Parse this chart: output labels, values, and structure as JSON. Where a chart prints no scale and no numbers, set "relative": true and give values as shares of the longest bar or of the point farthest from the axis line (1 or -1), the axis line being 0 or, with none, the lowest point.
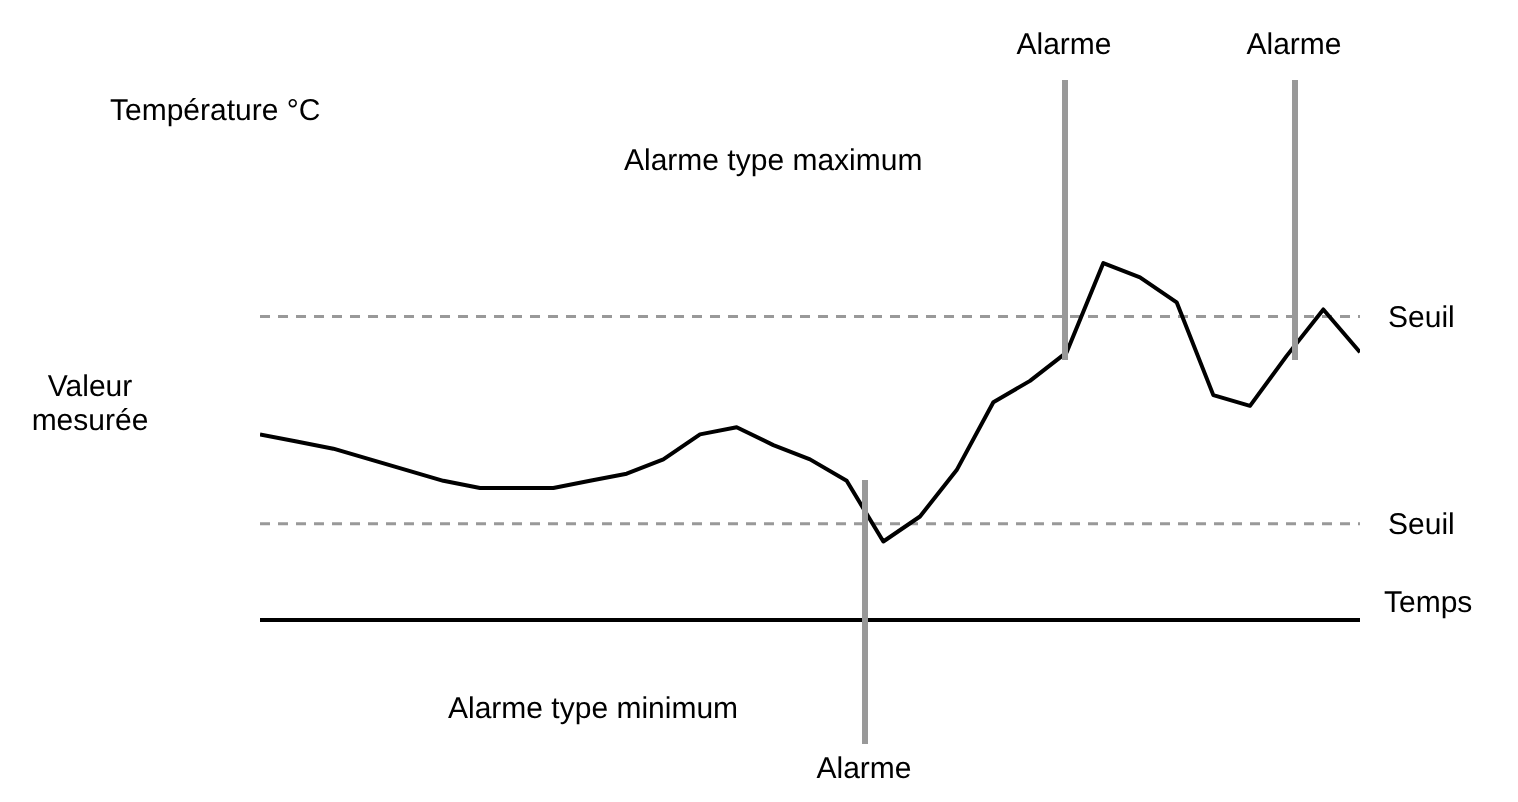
{
  "chart_data": {
    "type": "line",
    "relative": true,
    "xlabel": "Temps",
    "ylabel": "Température °C",
    "categories": [
      null,
      null,
      null,
      null,
      null,
      null,
      null,
      null,
      null,
      null,
      null,
      null,
      null,
      null,
      null,
      null,
      null,
      null,
      null,
      null,
      null,
      null,
      null,
      null,
      null,
      null,
      null,
      null,
      null,
      null,
      null
    ],
    "series": [
      {
        "color": "#000000",
        "values": [
          0.52,
          0.5,
          0.48,
          0.45,
          0.42,
          0.39,
          0.37,
          0.37,
          0.37,
          0.39,
          0.41,
          0.45,
          0.52,
          0.54,
          0.49,
          0.45,
          0.39,
          0.22,
          0.29,
          0.42,
          0.61,
          0.67,
          0.75,
          1,
          0.96,
          0.89,
          0.63,
          0.6,
          0.74,
          0.87,
          0.75
        ]
      }
    ],
    "ref_lines": [
      {
        "axis": "y",
        "value": 0.85,
        "label": "Seuil",
        "color": "#999999",
        "line_style": "dashed"
      },
      {
        "axis": "y",
        "value": 0.27,
        "label": "Seuil",
        "color": "#999999",
        "line_style": "dashed"
      }
    ],
    "annotations": [
      "Valeur mesurée",
      "Alarme type maximum",
      "Alarme type minimum",
      "Alarme",
      "Alarme",
      "Alarme"
    ],
    "grid": false,
    "legend": false,
    "marker": "none",
    "line_style": "solid"
  }
}
